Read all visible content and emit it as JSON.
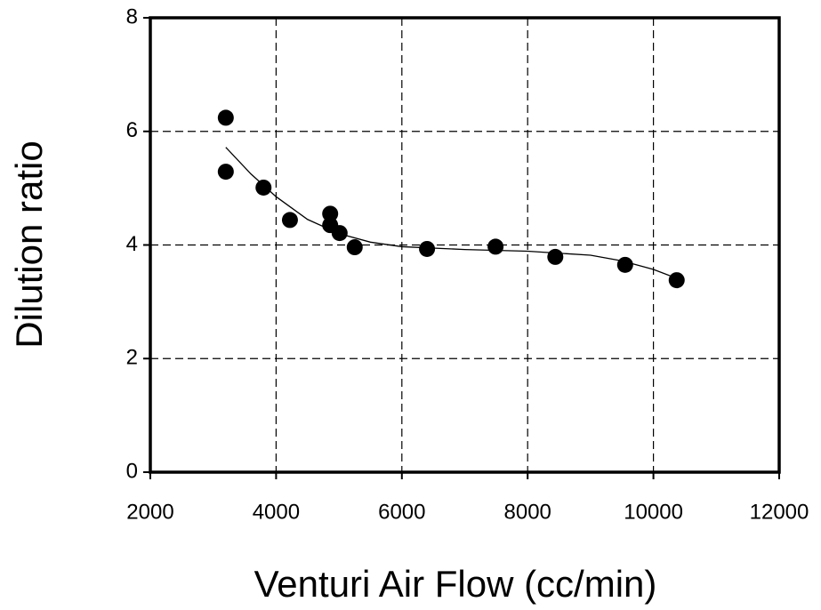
{
  "chart_data": {
    "type": "scatter",
    "x_label": "Venturi Air Flow (cc/min)",
    "y_label": "Dilution ratio",
    "series": [
      {
        "mode": "markers",
        "color": "#000000",
        "x": [
          3200,
          3200,
          3800,
          4220,
          4860,
          4860,
          5010,
          5250,
          6400,
          7490,
          8440,
          9550,
          10370
        ],
        "values": [
          6.24,
          5.29,
          5.01,
          4.44,
          4.55,
          4.35,
          4.21,
          3.96,
          3.93,
          3.97,
          3.79,
          3.65,
          3.38
        ]
      },
      {
        "mode": "line",
        "color": "#000000",
        "x": [
          3200,
          3600,
          4000,
          4500,
          5000,
          5500,
          6000,
          7000,
          8000,
          9000,
          9500,
          10000,
          10400
        ],
        "values": [
          5.72,
          5.25,
          4.85,
          4.45,
          4.2,
          4.05,
          3.97,
          3.92,
          3.89,
          3.82,
          3.72,
          3.57,
          3.4
        ]
      }
    ],
    "xlim": [
      2000,
      12000
    ],
    "xticks": [
      2000,
      4000,
      6000,
      8000,
      10000,
      12000
    ],
    "ylim": [
      0,
      8
    ],
    "yticks": [
      0,
      2,
      4,
      6,
      8
    ],
    "grid": true
  }
}
